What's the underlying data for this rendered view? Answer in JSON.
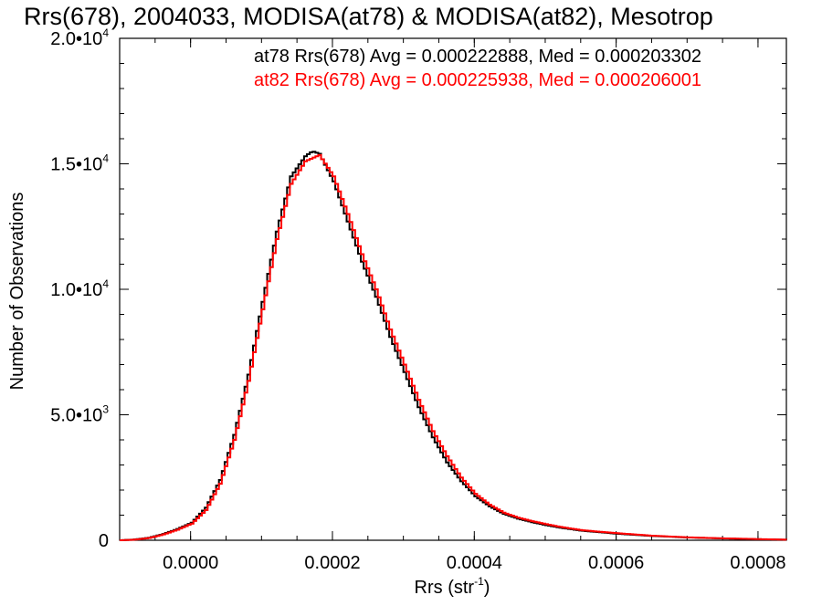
{
  "chart_data": {
    "type": "line",
    "title": "Rrs(678), 2004033, MODISA(at78) & MODISA(at82), Mesotrop",
    "xlabel": "Rrs (str",
    "xlabel_sup": "-1",
    "xlabel_tail": ")",
    "ylabel": "Number of Observations",
    "xlim": [
      -0.0001,
      0.00084
    ],
    "ylim": [
      0,
      20000
    ],
    "x_ticks": [
      {
        "value": 0.0,
        "label": "0.0000"
      },
      {
        "value": 0.0002,
        "label": "0.0002"
      },
      {
        "value": 0.0004,
        "label": "0.0004"
      },
      {
        "value": 0.0006,
        "label": "0.0006"
      },
      {
        "value": 0.0008,
        "label": "0.0008"
      }
    ],
    "y_ticks": [
      {
        "value": 0,
        "mant": "0",
        "exp": ""
      },
      {
        "value": 5000,
        "mant": "5.0•10",
        "exp": "3"
      },
      {
        "value": 10000,
        "mant": "1.0•10",
        "exp": "4"
      },
      {
        "value": 15000,
        "mant": "1.5•10",
        "exp": "4"
      },
      {
        "value": 20000,
        "mant": "2.0•10",
        "exp": "4"
      }
    ],
    "annotations": [
      {
        "text": "at78 Rrs(678) Avg = 0.000222888, Med = 0.000203302",
        "color": "#000000"
      },
      {
        "text": "at82 Rrs(678) Avg = 0.000225938, Med = 0.000206001",
        "color": "#ff0000"
      }
    ],
    "series": [
      {
        "color": "#000000",
        "x": [
          -0.0001,
          -8e-05,
          -6e-05,
          -4e-05,
          -2e-05,
          0.0,
          2e-05,
          4e-05,
          6e-05,
          8e-05,
          0.0001,
          0.00012,
          0.00014,
          0.00016,
          0.00017,
          0.00018,
          0.0002,
          0.00022,
          0.00024,
          0.00026,
          0.00028,
          0.0003,
          0.00032,
          0.00034,
          0.00036,
          0.00038,
          0.0004,
          0.00042,
          0.00044,
          0.00046,
          0.00048,
          0.0005,
          0.00052,
          0.00055,
          0.0006,
          0.00065,
          0.0007,
          0.00075,
          0.0008,
          0.00084
        ],
        "y": [
          0,
          30,
          100,
          250,
          450,
          700,
          1300,
          2400,
          4200,
          6600,
          9500,
          12300,
          14500,
          15300,
          15500,
          15400,
          14300,
          12700,
          11100,
          9700,
          8100,
          6700,
          5300,
          4100,
          3100,
          2350,
          1750,
          1350,
          1050,
          860,
          720,
          600,
          500,
          380,
          260,
          170,
          110,
          70,
          40,
          20
        ]
      },
      {
        "color": "#ff0000",
        "x": [
          -0.0001,
          -8e-05,
          -6e-05,
          -4e-05,
          -2e-05,
          0.0,
          2e-05,
          4e-05,
          6e-05,
          8e-05,
          0.0001,
          0.00012,
          0.00014,
          0.00016,
          0.00018,
          0.0002,
          0.00022,
          0.00024,
          0.00026,
          0.00028,
          0.0003,
          0.00032,
          0.00034,
          0.00036,
          0.00038,
          0.0004,
          0.00042,
          0.00044,
          0.00046,
          0.00048,
          0.0005,
          0.00052,
          0.00055,
          0.0006,
          0.00065,
          0.0007,
          0.00075,
          0.0008,
          0.00084
        ],
        "y": [
          0,
          25,
          90,
          230,
          420,
          660,
          1200,
          2250,
          4000,
          6350,
          9200,
          12000,
          14200,
          15100,
          15350,
          14500,
          13000,
          11400,
          10000,
          8400,
          7000,
          5600,
          4350,
          3350,
          2500,
          1850,
          1420,
          1100,
          900,
          760,
          640,
          530,
          400,
          280,
          180,
          115,
          75,
          45,
          22
        ]
      }
    ]
  }
}
